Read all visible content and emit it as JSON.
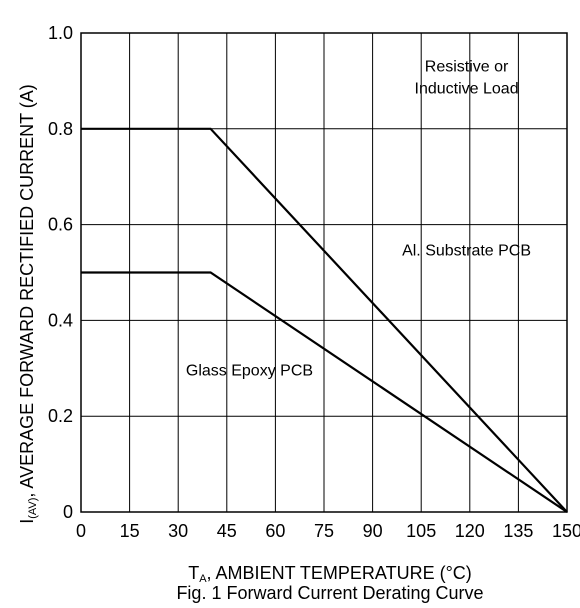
{
  "chart_data": {
    "type": "line",
    "title": "Fig. 1 Forward Current Derating Curve",
    "xlabel": {
      "main": "T",
      "sub": "A",
      "rest": ", AMBIENT TEMPERATURE (°C)"
    },
    "ylabel": {
      "main": "I",
      "sub": "(AV)",
      "rest": ", AVERAGE FORWARD RECTIFIED CURRENT (A)"
    },
    "xlim": [
      0,
      150
    ],
    "ylim": [
      0,
      1.0
    ],
    "x_ticks": [
      0,
      15,
      30,
      45,
      60,
      75,
      90,
      105,
      120,
      135,
      150
    ],
    "x_tick_labels": [
      "0",
      "15",
      "30",
      "45",
      "60",
      "75",
      "90",
      "105",
      "120",
      "135",
      "150"
    ],
    "y_ticks": [
      0,
      0.2,
      0.4,
      0.6,
      0.8,
      1.0
    ],
    "y_tick_labels": [
      "0",
      "0.2",
      "0.4",
      "0.6",
      "0.8",
      "1.0"
    ],
    "grid": true,
    "series": [
      {
        "name": "Al. Substrate PCB",
        "x": [
          0,
          40,
          150
        ],
        "y": [
          0.8,
          0.8,
          0
        ]
      },
      {
        "name": "Glass Epoxy PCB",
        "x": [
          0,
          40,
          150
        ],
        "y": [
          0.5,
          0.5,
          0
        ]
      }
    ],
    "annotations": [
      {
        "lines": [
          "Resistive or",
          "Inductive Load"
        ],
        "x": 119,
        "y": 0.92
      },
      {
        "lines": [
          "Al. Substrate PCB"
        ],
        "x": 119,
        "y": 0.535
      },
      {
        "lines": [
          "Glass Epoxy PCB"
        ],
        "x": 52,
        "y": 0.285
      }
    ],
    "colors": {
      "line": "#000000",
      "grid": "#000000",
      "background": "#ffffff"
    }
  }
}
